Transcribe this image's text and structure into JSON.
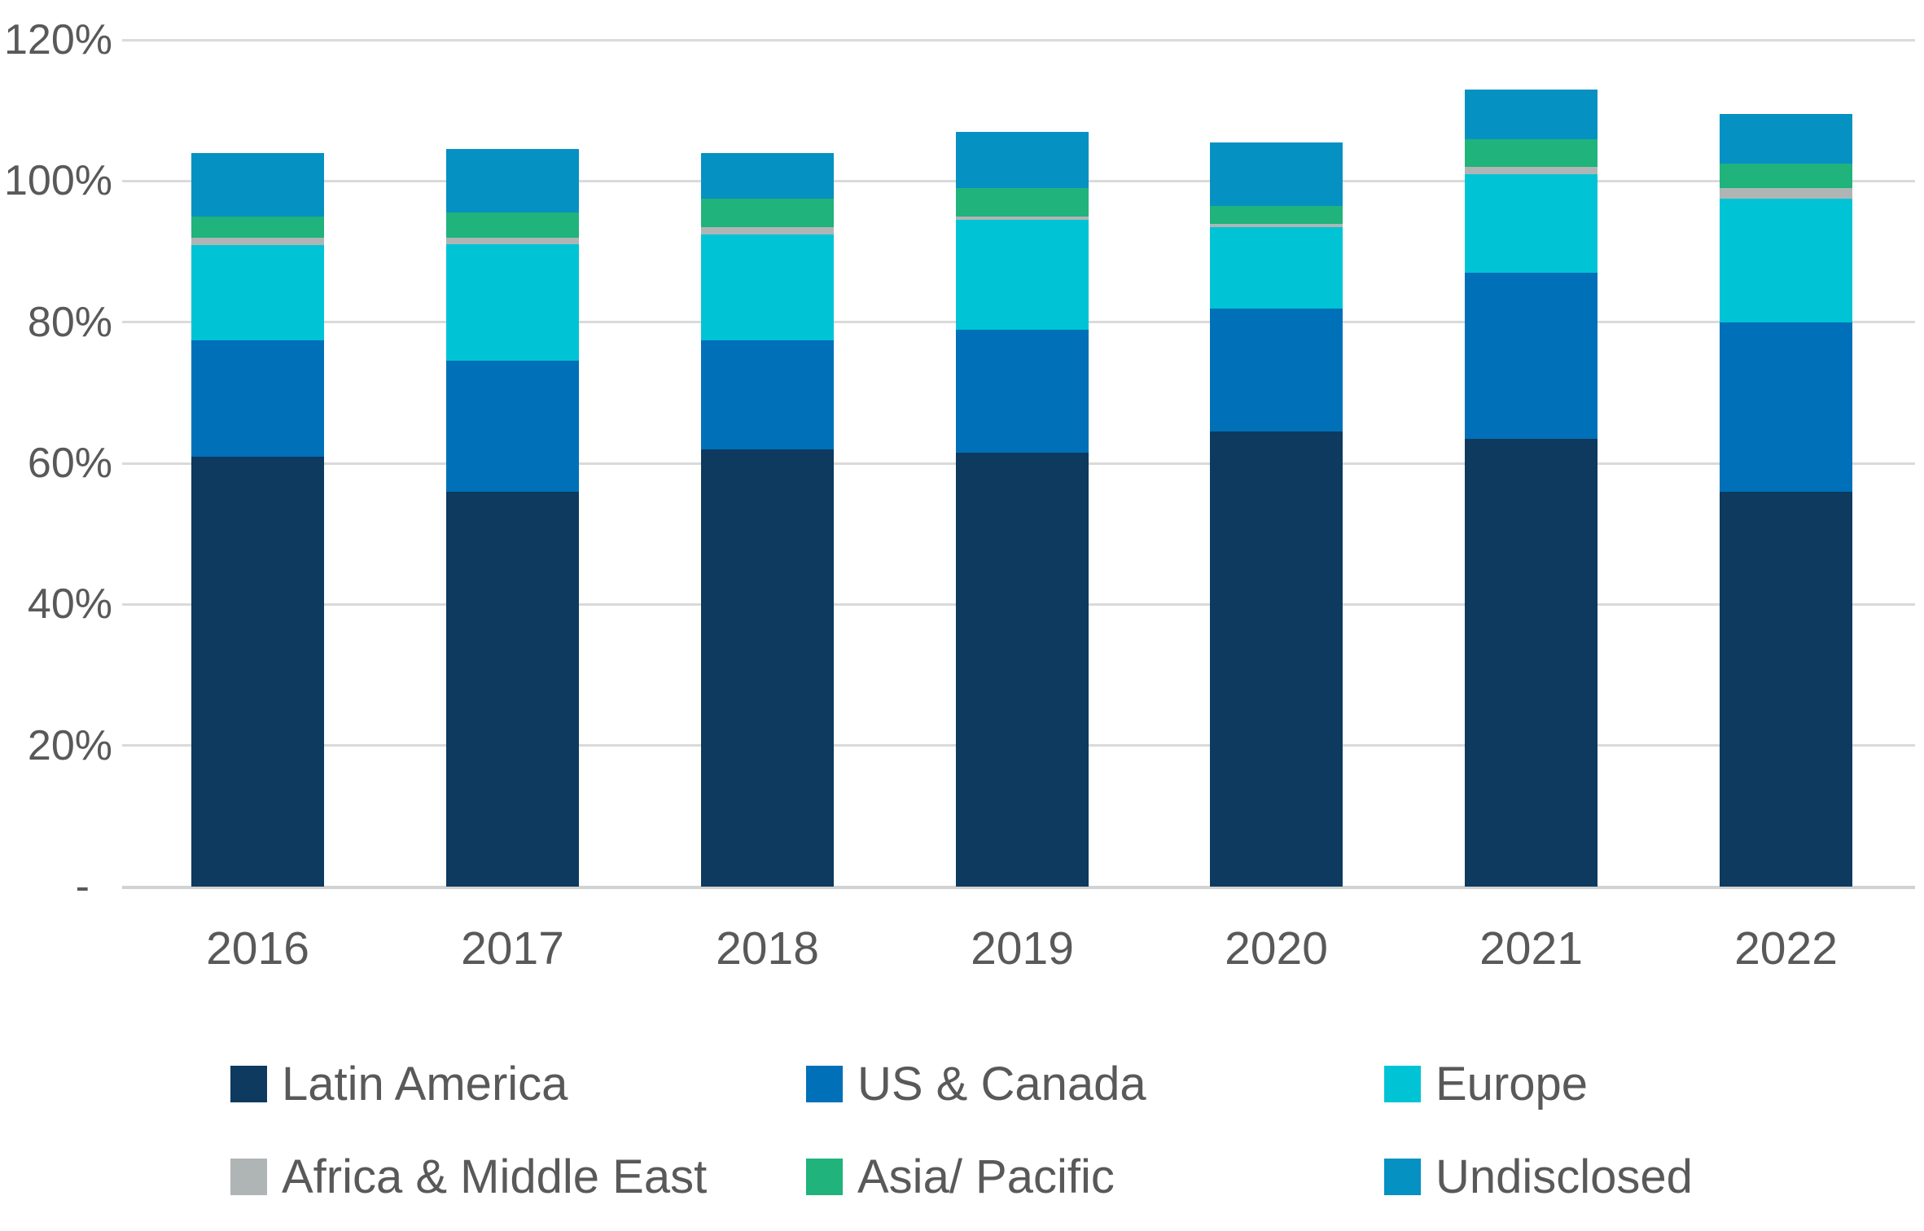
{
  "chart_data": {
    "type": "bar",
    "stacked": true,
    "title": "",
    "xlabel": "",
    "ylabel": "",
    "grid": true,
    "legend_position": "bottom",
    "categories": [
      "2016",
      "2017",
      "2018",
      "2019",
      "2020",
      "2021",
      "2022"
    ],
    "series": [
      {
        "name": "Latin America",
        "color": "#0D3A5E",
        "values": [
          61,
          56,
          62,
          61.5,
          64.5,
          63.5,
          56
        ]
      },
      {
        "name": "US & Canada",
        "color": "#0070B8",
        "values": [
          16.5,
          18.5,
          15.5,
          17.5,
          17.5,
          23.5,
          24
        ]
      },
      {
        "name": "Europe",
        "color": "#00C4D5",
        "values": [
          13.5,
          16.5,
          15,
          15.5,
          11.5,
          14,
          17.5
        ]
      },
      {
        "name": "Africa & Middle East",
        "color": "#AFB5B5",
        "values": [
          1,
          1,
          1,
          0.5,
          0.5,
          1,
          1.5
        ]
      },
      {
        "name": "Asia/ Pacific",
        "color": "#20B37C",
        "values": [
          3,
          3.5,
          4,
          4,
          2.5,
          4,
          3.5
        ]
      },
      {
        "name": "Undisclosed",
        "color": "#0691C3",
        "values": [
          9,
          9,
          6.5,
          8,
          9,
          7,
          7
        ]
      }
    ],
    "stack_totals": [
      104,
      104.5,
      104,
      107,
      105.5,
      113,
      109.5
    ],
    "y_axis": {
      "min": 0,
      "max": 120,
      "ticks": [
        {
          "label": "120%",
          "value": 120
        },
        {
          "label": "100%",
          "value": 100
        },
        {
          "label": "80%",
          "value": 80
        },
        {
          "label": "60%",
          "value": 60
        },
        {
          "label": "40%",
          "value": 40
        },
        {
          "label": "20%",
          "value": 20
        },
        {
          "label": "-",
          "value": 0
        }
      ]
    }
  },
  "style_colors": {
    "axis_text": "#595959",
    "gridline": "#DADADA",
    "background": "#FFFFFF"
  }
}
